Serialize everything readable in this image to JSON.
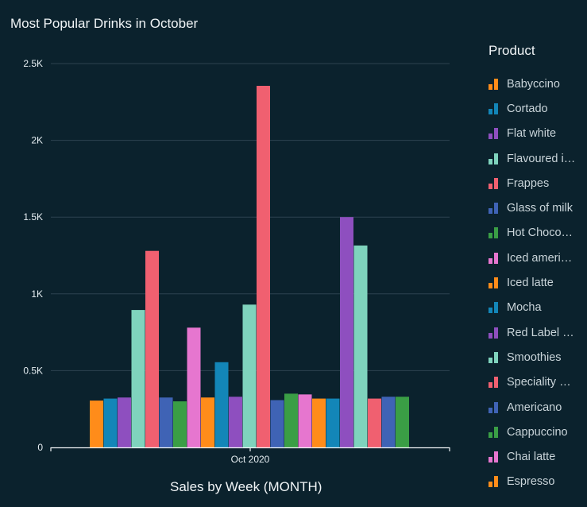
{
  "chart_data": {
    "type": "bar",
    "title": "Most Popular Drinks in October",
    "xlabel": "Sales by Week (MONTH)",
    "ylabel": "",
    "categories": [
      "Oct 2020"
    ],
    "ylim": [
      0,
      2500
    ],
    "yticks": [
      0,
      500,
      1000,
      1500,
      2000,
      2500
    ],
    "ytick_labels": [
      "0",
      "0.5K",
      "1K",
      "1.5K",
      "2K",
      "2.5K"
    ],
    "grid": true,
    "legend_title": "Product",
    "legend_position": "right",
    "legend": [
      "Babyccino",
      "Cortado",
      "Flat white",
      "Flavoured i…",
      "Frappes",
      "Glass of milk",
      "Hot Choco…",
      "Iced ameri…",
      "Iced latte",
      "Mocha",
      "Red Label …",
      "Smoothies",
      "Speciality …",
      "Americano",
      "Cappuccino",
      "Chai latte",
      "Espresso"
    ],
    "legend_colors": [
      "#ff8c1a",
      "#1386b8",
      "#8e4fbf",
      "#7fd3bd",
      "#f06070",
      "#3f63b5",
      "#3a9e45",
      "#e676cf",
      "#ff8c1a",
      "#1386b8",
      "#8e4fbf",
      "#7fd3bd",
      "#f06070",
      "#3f63b5",
      "#3a9e45",
      "#e676cf",
      "#ff8c1a"
    ],
    "bars": [
      {
        "color": "#ff8c1a",
        "value": 305
      },
      {
        "color": "#1386b8",
        "value": 318
      },
      {
        "color": "#8e4fbf",
        "value": 325
      },
      {
        "color": "#7fd3bd",
        "value": 895
      },
      {
        "color": "#f06070",
        "value": 1280
      },
      {
        "color": "#3f63b5",
        "value": 325
      },
      {
        "color": "#3a9e45",
        "value": 300
      },
      {
        "color": "#e676cf",
        "value": 780
      },
      {
        "color": "#ff8c1a",
        "value": 325
      },
      {
        "color": "#1386b8",
        "value": 555
      },
      {
        "color": "#8e4fbf",
        "value": 330
      },
      {
        "color": "#7fd3bd",
        "value": 930
      },
      {
        "color": "#f06070",
        "value": 2355
      },
      {
        "color": "#3f63b5",
        "value": 308
      },
      {
        "color": "#3a9e45",
        "value": 350
      },
      {
        "color": "#e676cf",
        "value": 345
      },
      {
        "color": "#ff8c1a",
        "value": 318
      },
      {
        "color": "#1386b8",
        "value": 318
      },
      {
        "color": "#8e4fbf",
        "value": 1500
      },
      {
        "color": "#7fd3bd",
        "value": 1315
      },
      {
        "color": "#f06070",
        "value": 318
      },
      {
        "color": "#3f63b5",
        "value": 330
      },
      {
        "color": "#3a9e45",
        "value": 330
      }
    ]
  }
}
